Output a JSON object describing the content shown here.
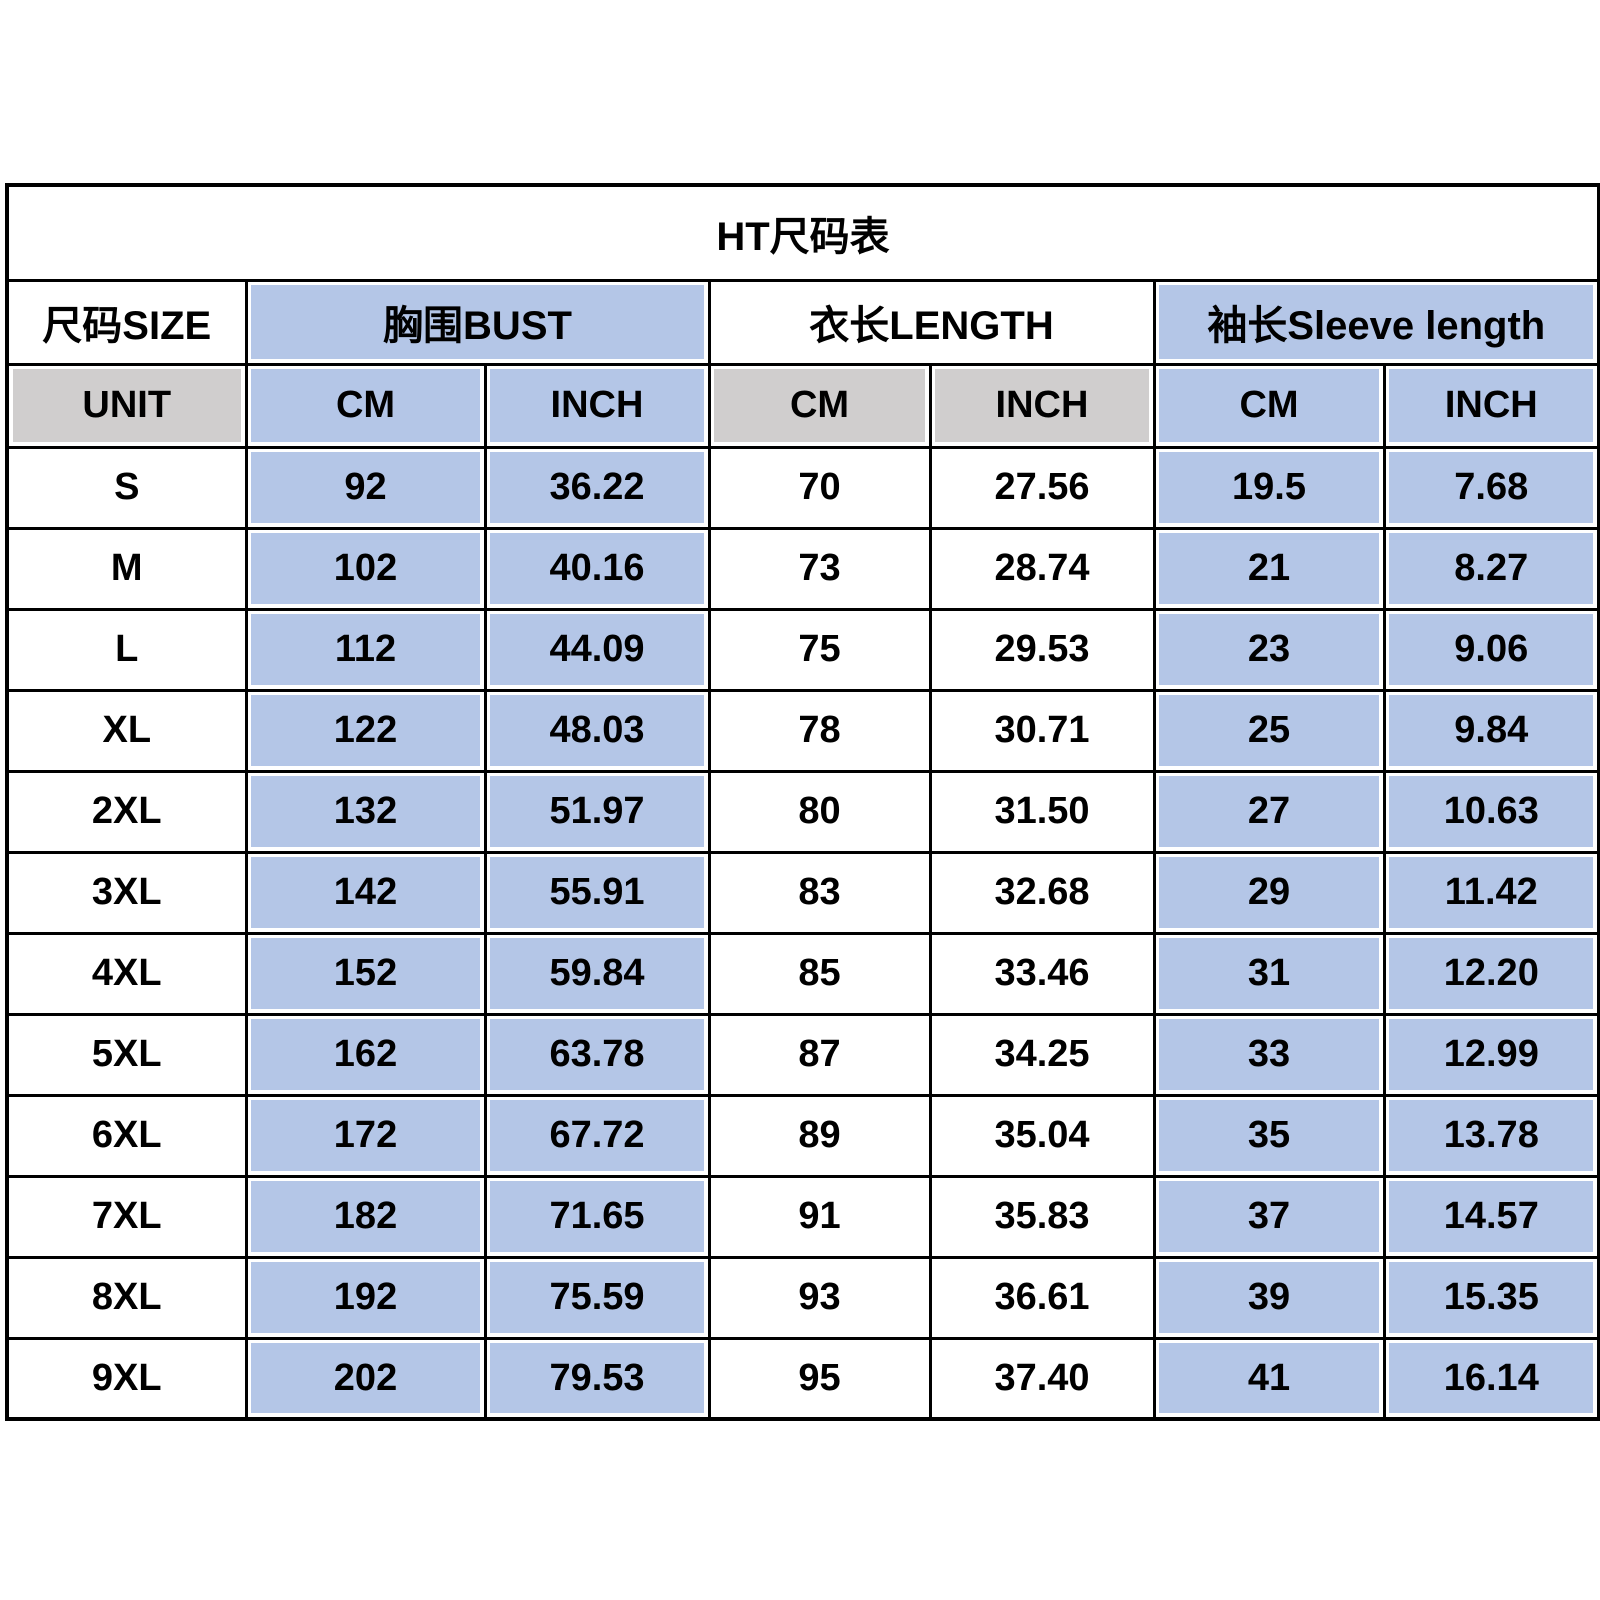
{
  "colors": {
    "blue": "#b4c6e7",
    "gray": "#d0cece",
    "border": "#000000",
    "text": "#000000",
    "background": "#ffffff"
  },
  "chart_data": {
    "type": "table",
    "title": "HT尺码表",
    "column_groups": [
      {
        "label": "尺码SIZE",
        "span": 1,
        "tone": "white"
      },
      {
        "label": "胸围BUST",
        "span": 2,
        "tone": "blue"
      },
      {
        "label": "衣长LENGTH",
        "span": 2,
        "tone": "white"
      },
      {
        "label": "袖长Sleeve length",
        "span": 2,
        "tone": "blue"
      }
    ],
    "unit_row": {
      "labels": [
        "UNIT",
        "CM",
        "INCH",
        "CM",
        "INCH",
        "CM",
        "INCH"
      ],
      "tones": [
        "gray",
        "blue",
        "blue",
        "gray",
        "gray",
        "blue",
        "blue"
      ]
    },
    "row_tones": [
      "white",
      "blue",
      "blue",
      "white",
      "white",
      "blue",
      "blue"
    ],
    "rows": [
      [
        "S",
        "92",
        "36.22",
        "70",
        "27.56",
        "19.5",
        "7.68"
      ],
      [
        "M",
        "102",
        "40.16",
        "73",
        "28.74",
        "21",
        "8.27"
      ],
      [
        "L",
        "112",
        "44.09",
        "75",
        "29.53",
        "23",
        "9.06"
      ],
      [
        "XL",
        "122",
        "48.03",
        "78",
        "30.71",
        "25",
        "9.84"
      ],
      [
        "2XL",
        "132",
        "51.97",
        "80",
        "31.50",
        "27",
        "10.63"
      ],
      [
        "3XL",
        "142",
        "55.91",
        "83",
        "32.68",
        "29",
        "11.42"
      ],
      [
        "4XL",
        "152",
        "59.84",
        "85",
        "33.46",
        "31",
        "12.20"
      ],
      [
        "5XL",
        "162",
        "63.78",
        "87",
        "34.25",
        "33",
        "12.99"
      ],
      [
        "6XL",
        "172",
        "67.72",
        "89",
        "35.04",
        "35",
        "13.78"
      ],
      [
        "7XL",
        "182",
        "71.65",
        "91",
        "35.83",
        "37",
        "14.57"
      ],
      [
        "8XL",
        "192",
        "75.59",
        "93",
        "36.61",
        "39",
        "15.35"
      ],
      [
        "9XL",
        "202",
        "79.53",
        "95",
        "37.40",
        "41",
        "16.14"
      ]
    ]
  }
}
